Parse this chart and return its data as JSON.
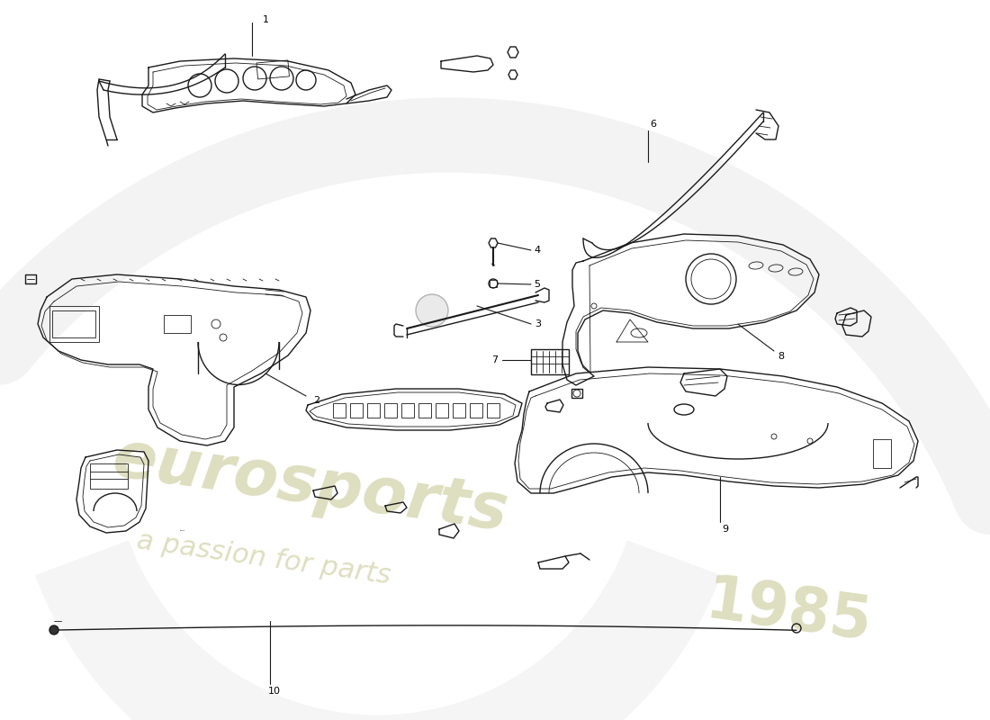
{
  "background_color": "#ffffff",
  "line_color": "#1a1a1a",
  "watermark_color_eurosports": "#c8c896",
  "watermark_color_year": "#c8c896",
  "watermark_alpha": 0.6,
  "fig_width": 11.0,
  "fig_height": 8.0,
  "dpi": 100,
  "label_fontsize": 7.5,
  "label_color": "#000000"
}
